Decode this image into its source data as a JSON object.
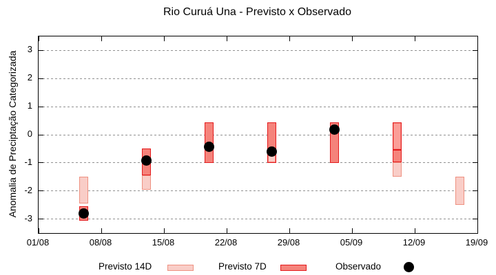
{
  "chart_data": {
    "type": "bar",
    "subtype": "forecast-boxes-with-observed-dots",
    "title": "Rio Curuá Una - Previsto x Observado",
    "ylabel": "Anomalia de Preciptação Categorizada",
    "ylim": [
      -3.5,
      3.5
    ],
    "yticks": [
      -3,
      -2,
      -1,
      0,
      1,
      2,
      3
    ],
    "xtick_labels": [
      "01/08",
      "08/08",
      "15/08",
      "22/08",
      "29/08",
      "05/09",
      "12/09",
      "19/09"
    ],
    "xtick_day_offsets": [
      0,
      7,
      14,
      21,
      28,
      35,
      42,
      49
    ],
    "x_total_days": 49,
    "grid": "horizontal-dashed",
    "legend_position": "bottom",
    "legend": [
      {
        "label": "Previsto 14D",
        "swatch": "light-pink-box"
      },
      {
        "label": "Previsto 7D",
        "swatch": "salmon-red-box"
      },
      {
        "label": "Observado",
        "swatch": "black-dot"
      }
    ],
    "colors": {
      "previsto14_fill": "#f9cdc7",
      "previsto14_border": "#ee9181",
      "previsto7_fill": "#f5837b",
      "previsto7_fill_light": "#fb9d97",
      "previsto7_border": "#e41a1c",
      "observado": "#000000",
      "grid": "#909090"
    },
    "clusters": [
      {
        "date": "06/08",
        "day": 5,
        "p14": [
          -2.45,
          -1.5
        ],
        "p7": [
          -3.05,
          -2.55
        ],
        "obs": -2.8
      },
      {
        "date": "13/08",
        "day": 12,
        "p14": [
          -1.95,
          -1.45
        ],
        "p7": [
          -1.45,
          -0.5
        ],
        "obs": -0.93
      },
      {
        "date": "20/08",
        "day": 19,
        "p7": [
          -1.0,
          0.45
        ],
        "obs": -0.43
      },
      {
        "date": "27/08",
        "day": 26,
        "p7": [
          -1.0,
          0.45
        ],
        "p7_inner": [
          {
            "range": [
              -1.0,
              -0.7
            ],
            "color": "#f9cdc7"
          }
        ],
        "obs": -0.6
      },
      {
        "date": "03/09",
        "day": 33,
        "p7": [
          -1.0,
          0.45
        ],
        "obs": 0.18
      },
      {
        "date": "10/09",
        "day": 40,
        "p14": [
          -1.5,
          -0.97
        ],
        "p7": [
          -0.97,
          0.45
        ],
        "p7_inner": [
          {
            "range": [
              -0.53,
              0.45
            ],
            "color": "#fb9d97"
          }
        ],
        "divider": -0.53
      },
      {
        "date": "17/09",
        "day": 47,
        "p14": [
          -2.5,
          -1.5
        ]
      }
    ]
  }
}
